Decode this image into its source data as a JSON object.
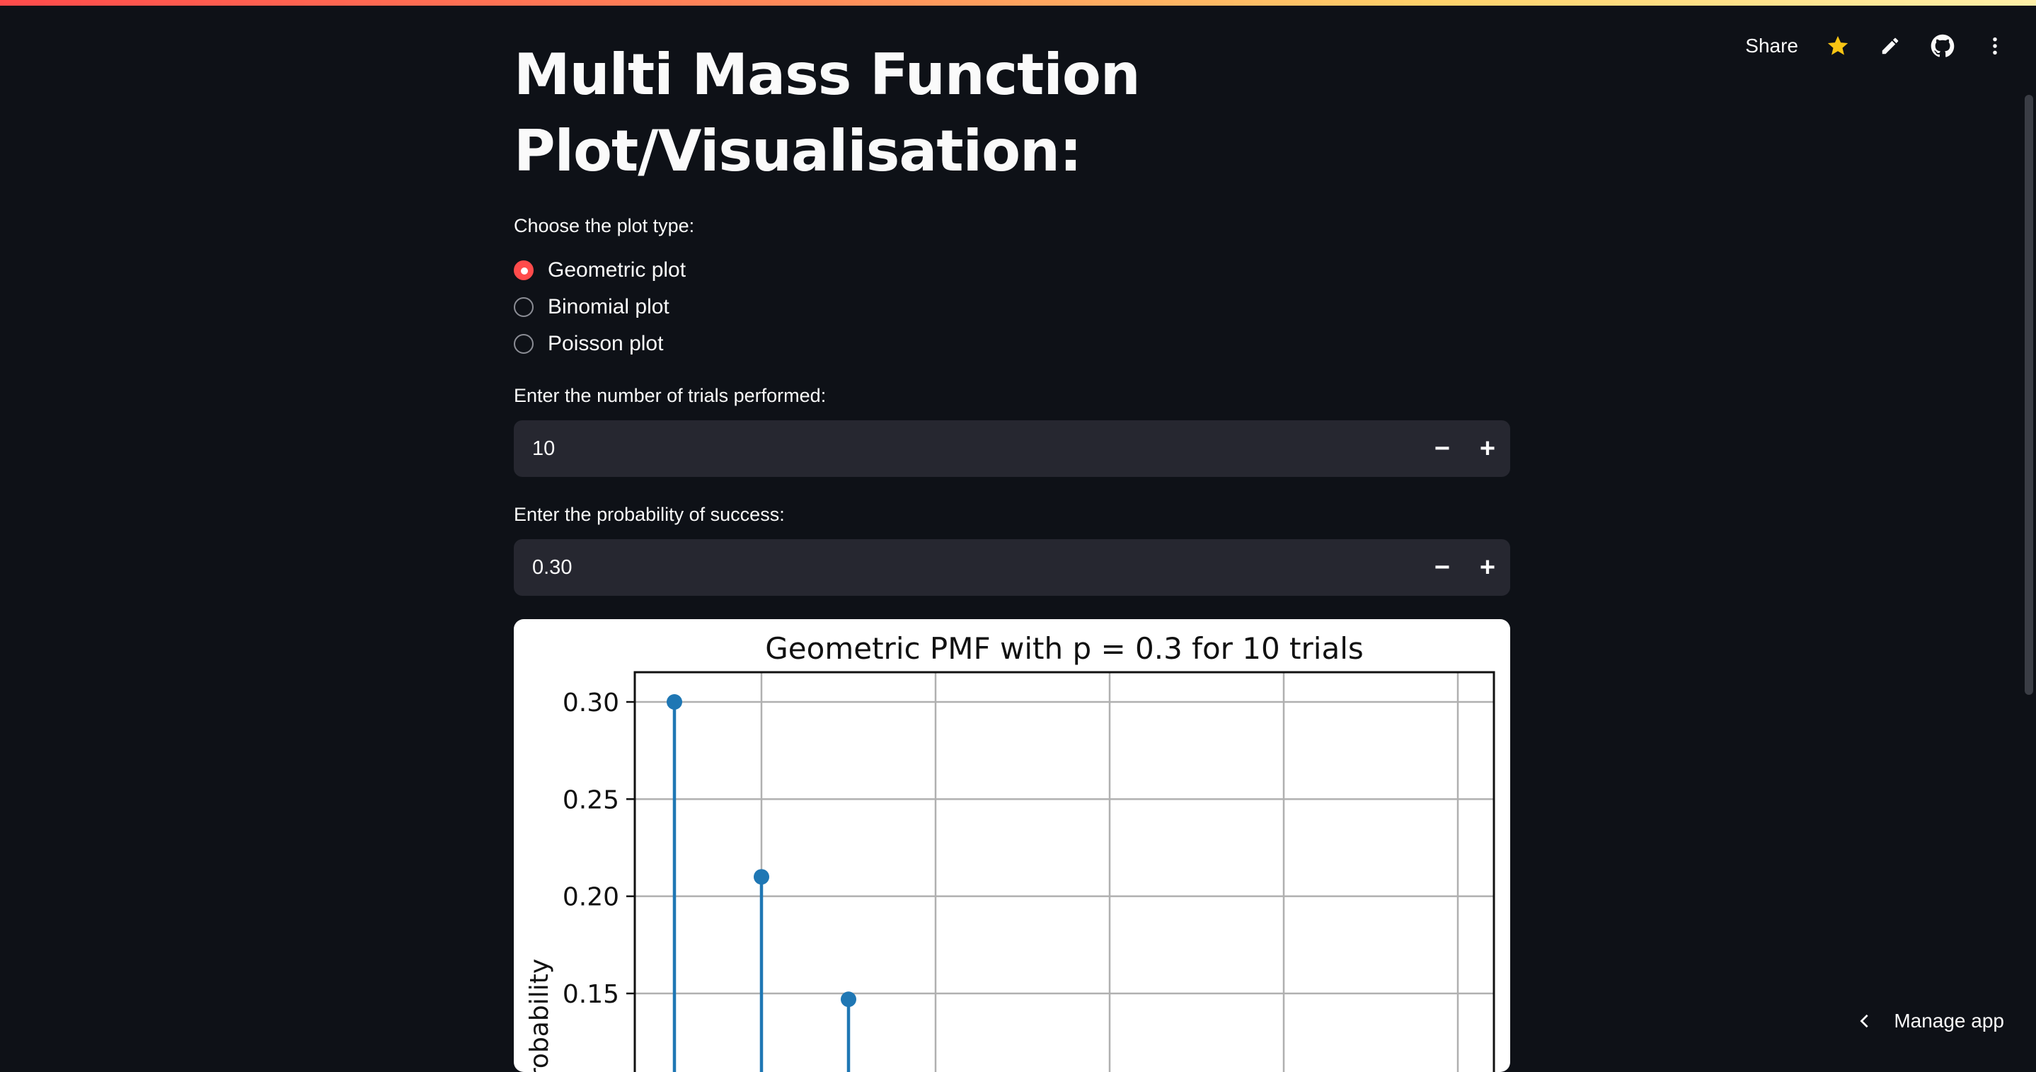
{
  "header": {
    "share_label": "Share",
    "icons": [
      "star-icon",
      "pencil-icon",
      "github-icon",
      "kebab-menu-icon"
    ],
    "accent_color": "#ff4b4b",
    "star_color": "#f9c513"
  },
  "page": {
    "title_line1": "Multi Mass Function",
    "title_line2": "Plot/Visualisation:"
  },
  "plot_type": {
    "label": "Choose the plot type:",
    "options": [
      "Geometric plot",
      "Binomial plot",
      "Poisson plot"
    ],
    "selected": "Geometric plot"
  },
  "trials": {
    "label": "Enter the number of trials performed:",
    "value": "10",
    "minus": "−",
    "plus": "+"
  },
  "probability": {
    "label": "Enter the probability of success:",
    "value": "0.30",
    "minus": "−",
    "plus": "+"
  },
  "footer": {
    "manage_label": "Manage app"
  },
  "chart_data": {
    "type": "stem",
    "title": "Geometric PMF with p = 0.3 for 10 trials",
    "ylabel": "Probability",
    "ylim_visible": [
      0.1,
      0.315
    ],
    "yticks": [
      "0.30",
      "0.25",
      "0.20",
      "0.15"
    ],
    "grid": true,
    "series": [
      {
        "color": "#1f77b4",
        "x": [
          1,
          2,
          3
        ],
        "y": [
          0.3,
          0.21,
          0.147
        ]
      }
    ]
  }
}
